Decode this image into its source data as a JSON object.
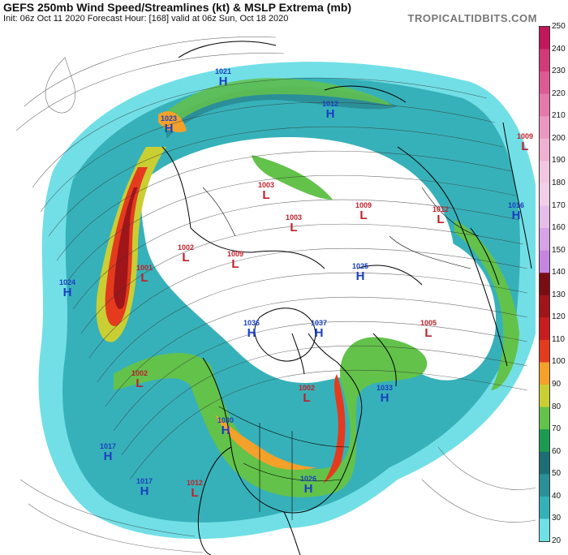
{
  "header": {
    "title": "GEFS 250mb Wind Speed/Streamlines (kt) & MSLP Extrema (mb)",
    "subtitle": "Init: 06z Oct 11 2020   Forecast Hour: [168]   valid at 06z Sun, Oct 18 2020",
    "brand": "TROPICALTIDBITS.COM"
  },
  "colors": {
    "high": "#1a3fc0",
    "low": "#c0202a",
    "coast": "#000000",
    "streamline": "#333333"
  },
  "colorbar": {
    "labels": [
      "250",
      "240",
      "230",
      "220",
      "210",
      "200",
      "190",
      "180",
      "170",
      "160",
      "150",
      "140",
      "130",
      "120",
      "110",
      "100",
      "90",
      "80",
      "70",
      "60",
      "50",
      "40",
      "30",
      "20"
    ],
    "segments": [
      {
        "from": 250,
        "to": 240,
        "color": "#c2185b"
      },
      {
        "from": 240,
        "to": 230,
        "color": "#d23a78"
      },
      {
        "from": 230,
        "to": 220,
        "color": "#dd5b92"
      },
      {
        "from": 220,
        "to": 210,
        "color": "#e57aaa"
      },
      {
        "from": 210,
        "to": 200,
        "color": "#ec97bf"
      },
      {
        "from": 200,
        "to": 190,
        "color": "#f0b1d1"
      },
      {
        "from": 190,
        "to": 180,
        "color": "#f3c6df"
      },
      {
        "from": 180,
        "to": 170,
        "color": "#f1cfe6"
      },
      {
        "from": 170,
        "to": 160,
        "color": "#e6bde8"
      },
      {
        "from": 160,
        "to": 150,
        "color": "#d7a2e6"
      },
      {
        "from": 150,
        "to": 140,
        "color": "#c785e2"
      },
      {
        "from": 140,
        "to": 130,
        "color": "#7a0d14"
      },
      {
        "from": 130,
        "to": 120,
        "color": "#a0151a"
      },
      {
        "from": 120,
        "to": 110,
        "color": "#c81d1f"
      },
      {
        "from": 110,
        "to": 100,
        "color": "#e43b1e"
      },
      {
        "from": 100,
        "to": 90,
        "color": "#f3a12a"
      },
      {
        "from": 90,
        "to": 80,
        "color": "#c9cf33"
      },
      {
        "from": 80,
        "to": 70,
        "color": "#63c24a"
      },
      {
        "from": 70,
        "to": 60,
        "color": "#1c9a52"
      },
      {
        "from": 60,
        "to": 50,
        "color": "#1d6e74"
      },
      {
        "from": 50,
        "to": 40,
        "color": "#2a8f98"
      },
      {
        "from": 40,
        "to": 30,
        "color": "#34b0b8"
      },
      {
        "from": 30,
        "to": 20,
        "color": "#6fe0e6"
      }
    ]
  },
  "pressure_centers": [
    {
      "type": "H",
      "value": "1021"
    },
    {
      "type": "H",
      "value": "1023"
    },
    {
      "type": "H",
      "value": "1012"
    },
    {
      "type": "L",
      "value": "1009"
    },
    {
      "type": "L",
      "value": "1003"
    },
    {
      "type": "L",
      "value": "1003"
    },
    {
      "type": "L",
      "value": "1009"
    },
    {
      "type": "L",
      "value": "1012"
    },
    {
      "type": "H",
      "value": "1016"
    },
    {
      "type": "L",
      "value": "1002"
    },
    {
      "type": "L",
      "value": "1009"
    },
    {
      "type": "L",
      "value": "1001"
    },
    {
      "type": "H",
      "value": "1025"
    },
    {
      "type": "H",
      "value": "1024"
    },
    {
      "type": "H",
      "value": "1036"
    },
    {
      "type": "H",
      "value": "1037"
    },
    {
      "type": "L",
      "value": "1005"
    },
    {
      "type": "L",
      "value": "1002"
    },
    {
      "type": "L",
      "value": "1002"
    },
    {
      "type": "H",
      "value": "1033"
    },
    {
      "type": "H",
      "value": "1030"
    },
    {
      "type": "H",
      "value": "1017"
    },
    {
      "type": "H",
      "value": "1017"
    },
    {
      "type": "L",
      "value": "1012"
    },
    {
      "type": "H",
      "value": "1026"
    }
  ]
}
